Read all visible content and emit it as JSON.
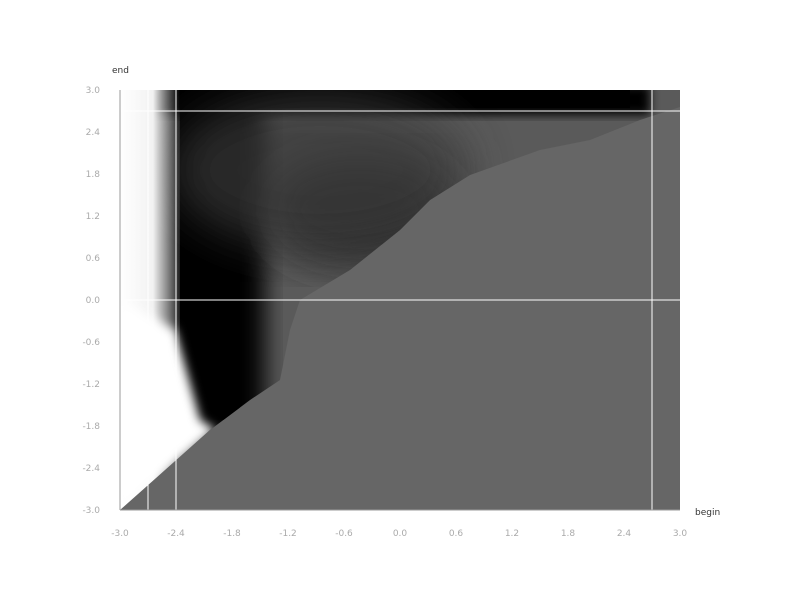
{
  "chart_data": {
    "type": "heatmap",
    "title": "",
    "xlabel": "begin",
    "ylabel": "end",
    "xlim": [
      -3.0,
      3.0
    ],
    "ylim": [
      -3.0,
      3.0
    ],
    "x_ticks": [
      "-3.0",
      "-2.4",
      "-1.8",
      "-1.2",
      "-0.6",
      "0.0",
      "0.6",
      "1.2",
      "1.8",
      "2.4",
      "3.0"
    ],
    "y_ticks": [
      "3.0",
      "2.4",
      "1.8",
      "1.2",
      "0.6",
      "0.0",
      "-0.6",
      "-1.2",
      "-1.8",
      "-2.4",
      "-3.0"
    ],
    "grid": false,
    "reference_lines": {
      "vertical_x": [
        -2.7,
        -2.4,
        2.7
      ],
      "horizontal_y": [
        2.7,
        0.0
      ]
    },
    "colormap": "grayscale",
    "colors": {
      "background": "#ffffff",
      "plateau": "#666666",
      "low": "#000000",
      "high": "#ffffff",
      "tick_text": "#aaaaaa",
      "label_text": "#333333",
      "ref_line": "#ffffff"
    }
  }
}
